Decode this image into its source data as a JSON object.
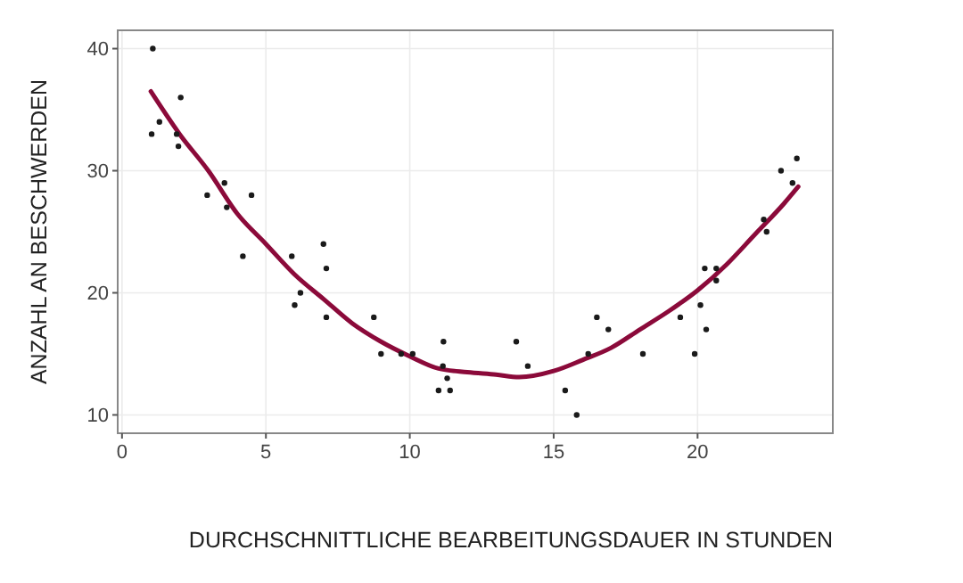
{
  "chart_data": {
    "type": "scatter",
    "xlabel": "DURCHSCHNITTLICHE BEARBEITUNGSDAUER IN STUNDEN",
    "ylabel": "ANZAHL AN BESCHWERDEN",
    "xlim": [
      -0.15,
      24.7
    ],
    "ylim": [
      8.5,
      41.5
    ],
    "xticks": [
      0,
      5,
      10,
      15,
      20
    ],
    "yticks": [
      10,
      20,
      30,
      40
    ],
    "grid": true,
    "series": [
      {
        "color": "#1a1a1a",
        "marker": "circle",
        "x": [
          1.07,
          1.03,
          1.3,
          2.04,
          1.96,
          1.9,
          2.96,
          3.56,
          3.64,
          4.5,
          4.2,
          5.9,
          6.0,
          6.2,
          7.0,
          7.1,
          7.1,
          8.75,
          9.0,
          9.7,
          10.1,
          11.17,
          11.15,
          11.3,
          11.0,
          11.4,
          13.7,
          14.1,
          15.4,
          15.8,
          16.2,
          16.5,
          16.9,
          18.1,
          19.4,
          19.9,
          20.1,
          20.25,
          20.3,
          20.65,
          20.65,
          22.3,
          22.4,
          22.9,
          23.3,
          23.45
        ],
        "values": [
          40,
          33,
          34,
          36,
          32,
          33,
          28,
          29,
          27,
          28,
          23,
          23,
          19,
          20,
          24,
          22,
          18,
          18,
          15,
          15,
          15,
          16,
          14,
          13,
          12,
          12,
          16,
          14,
          12,
          10,
          15,
          18,
          17,
          15,
          18,
          15,
          19,
          22,
          17,
          22,
          21,
          26,
          25,
          30,
          29,
          31
        ]
      },
      {
        "type": "line",
        "color": "#8b0a3a",
        "marker": "none",
        "line_style": "solid",
        "x": [
          1,
          2,
          3,
          4,
          5,
          6,
          7,
          8,
          9,
          10,
          11,
          12,
          13,
          13.8,
          15,
          16,
          17,
          18,
          19,
          20,
          21,
          22,
          23,
          23.5
        ],
        "values": [
          36.5,
          33,
          30,
          26.5,
          24,
          21.5,
          19.5,
          17.5,
          16,
          14.8,
          13.8,
          13.5,
          13.3,
          13.1,
          13.6,
          14.5,
          15.5,
          17,
          18.5,
          20.2,
          22.3,
          24.8,
          27.3,
          28.7
        ]
      }
    ]
  }
}
